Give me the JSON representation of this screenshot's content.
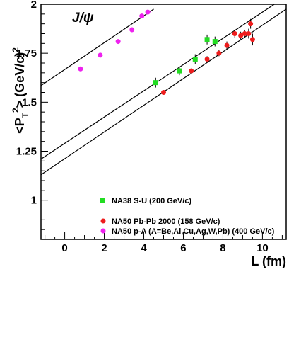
{
  "chart_data": {
    "type": "scatter",
    "annotation": "J/ψ",
    "xlabel": "L (fm)",
    "ylabel_parts": {
      "main": "<P",
      "sub": "T",
      "sup": "2",
      "rest": "> (GeV/c)",
      "sup2": "2"
    },
    "xlim": [
      -1.2,
      11.2
    ],
    "ylim": [
      0.8,
      2.0
    ],
    "x_ticks": [
      0,
      2,
      4,
      6,
      8,
      10
    ],
    "y_ticks": [
      1,
      1.25,
      1.5,
      1.75,
      2
    ],
    "y_tick_labels": [
      "1",
      "1.25",
      "1.5",
      "1.75",
      "2"
    ],
    "grid": false,
    "legend_position": "bottom-right inside",
    "series": [
      {
        "name": "NA38 S-U (200 GeV/c)",
        "marker": "square",
        "color": "#22dd22",
        "points": [
          {
            "x": 4.6,
            "y": 1.6,
            "err": 0.025
          },
          {
            "x": 5.8,
            "y": 1.66,
            "err": 0.022
          },
          {
            "x": 6.6,
            "y": 1.72,
            "err": 0.025
          },
          {
            "x": 7.2,
            "y": 1.82,
            "err": 0.025
          },
          {
            "x": 7.6,
            "y": 1.81,
            "err": 0.025
          }
        ]
      },
      {
        "name": "NA50 Pb-Pb 2000 (158 GeV/c)",
        "marker": "circle",
        "color": "#ee1c1c",
        "points": [
          {
            "x": 5.0,
            "y": 1.55,
            "err": 0.01
          },
          {
            "x": 6.4,
            "y": 1.66,
            "err": 0.015
          },
          {
            "x": 7.2,
            "y": 1.72,
            "err": 0.015
          },
          {
            "x": 7.8,
            "y": 1.75,
            "err": 0.015
          },
          {
            "x": 8.2,
            "y": 1.79,
            "err": 0.02
          },
          {
            "x": 8.6,
            "y": 1.85,
            "err": 0.02
          },
          {
            "x": 8.9,
            "y": 1.84,
            "err": 0.02
          },
          {
            "x": 9.1,
            "y": 1.85,
            "err": 0.02
          },
          {
            "x": 9.3,
            "y": 1.85,
            "err": 0.025
          },
          {
            "x": 9.4,
            "y": 1.9,
            "err": 0.025
          },
          {
            "x": 9.5,
            "y": 1.82,
            "err": 0.03
          }
        ]
      },
      {
        "name": "NA50  p-A (A=Be,Al,Cu,Ag,W,Pb) (400 GeV/c)",
        "marker": "circle",
        "color": "#ee22ee",
        "points": [
          {
            "x": 0.8,
            "y": 1.67
          },
          {
            "x": 1.8,
            "y": 1.74
          },
          {
            "x": 2.7,
            "y": 1.81
          },
          {
            "x": 3.4,
            "y": 1.87
          },
          {
            "x": 3.9,
            "y": 1.94
          },
          {
            "x": 4.2,
            "y": 1.96
          }
        ]
      }
    ],
    "fit_lines": [
      {
        "x": [
          -1.2,
          4.5
        ],
        "y": [
          1.585,
          1.975
        ]
      },
      {
        "x": [
          -1.2,
          10.6
        ],
        "y": [
          1.21,
          2.0
        ]
      },
      {
        "x": [
          -1.2,
          11.2
        ],
        "y": [
          1.13,
          1.975
        ]
      }
    ]
  }
}
